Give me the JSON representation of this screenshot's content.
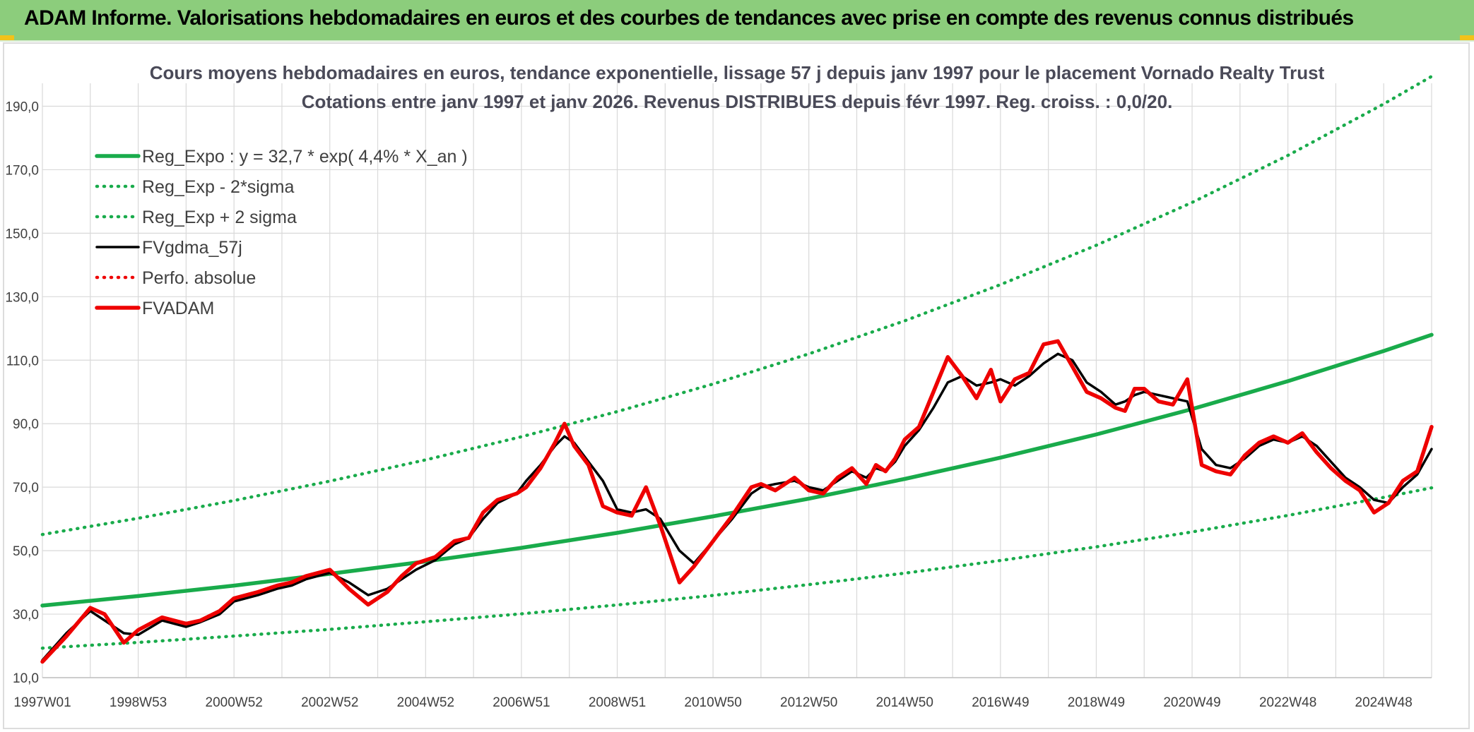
{
  "banner": {
    "title": "ADAM Informe. Valorisations hebdomadaires en euros et des courbes de tendances avec prise en compte des revenus connus distribués"
  },
  "colors": {
    "banner_bg": "#8ccd7c",
    "reg": "#19ab4b",
    "red": "#ee0000",
    "black": "#000000"
  },
  "chart_data": {
    "type": "line",
    "title": [
      "Cours moyens hebdomadaires en euros, tendance exponentielle, lissage 57 j depuis janv 1997 pour le placement Vornado Realty Trust",
      "Cotations entre janv 1997 et janv 2026. Revenus DISTRIBUES depuis févr 1997. Reg. croiss. : 0,0/20."
    ],
    "xlabel": "",
    "ylabel": "",
    "xlim": [
      1997.0,
      2026.0
    ],
    "ylim": [
      10,
      195
    ],
    "y_ticks": [
      10,
      30,
      50,
      70,
      90,
      110,
      130,
      150,
      170,
      190
    ],
    "y_tick_labels": [
      "10,0",
      "30,0",
      "50,0",
      "70,0",
      "90,0",
      "110,0",
      "130,0",
      "150,0",
      "170,0",
      "190,0"
    ],
    "x_ticks": [
      1997.0,
      1999.0,
      2001.0,
      2003.0,
      2005.0,
      2007.0,
      2009.0,
      2011.0,
      2013.0,
      2015.0,
      2017.0,
      2019.0,
      2021.0,
      2023.0,
      2025.0
    ],
    "x_tick_labels": [
      "1997W01",
      "1998W53",
      "2000W52",
      "2002W52",
      "2004W52",
      "2006W51",
      "2008W51",
      "2010W50",
      "2012W50",
      "2014W50",
      "2016W49",
      "2018W49",
      "2020W49",
      "2022W48",
      "2024W48"
    ],
    "minor_x_ticks": [
      1998.0,
      2000.0,
      2002.0,
      2004.0,
      2006.0,
      2008.0,
      2010.0,
      2012.0,
      2014.0,
      2016.0,
      2018.0,
      2020.0,
      2022.0,
      2024.0,
      2026.0
    ],
    "grid": true,
    "legend_position": "top-left",
    "series": [
      {
        "name": "Reg_Expo : y = 32,7 * exp( 4,4% *  X_an )",
        "style": "solid-thick",
        "color": "#19ab4b",
        "x": [
          1997,
          1999,
          2001,
          2003,
          2005,
          2007,
          2009,
          2011,
          2013,
          2015,
          2017,
          2019,
          2021,
          2023,
          2025,
          2026
        ],
        "y": [
          32.7,
          35.7,
          39.0,
          42.7,
          46.6,
          50.9,
          55.6,
          60.8,
          66.4,
          72.6,
          79.3,
          86.6,
          94.6,
          103.4,
          112.9,
          118.0
        ]
      },
      {
        "name": "Reg_Exp - 2*sigma",
        "style": "dotted",
        "color": "#19ab4b",
        "x": [
          1997,
          1999,
          2001,
          2003,
          2005,
          2007,
          2009,
          2011,
          2013,
          2015,
          2017,
          2019,
          2021,
          2023,
          2025,
          2026
        ],
        "y": [
          19.3,
          21.1,
          23.1,
          25.2,
          27.6,
          30.1,
          32.9,
          35.9,
          39.3,
          42.9,
          46.9,
          51.2,
          55.9,
          61.1,
          66.8,
          69.8
        ]
      },
      {
        "name": "Reg_Exp + 2 sigma",
        "style": "dotted",
        "color": "#19ab4b",
        "x": [
          1997,
          1999,
          2001,
          2003,
          2005,
          2007,
          2009,
          2011,
          2013,
          2015,
          2017,
          2019,
          2021,
          2023,
          2025,
          2026
        ],
        "y": [
          55.1,
          60.2,
          65.8,
          71.9,
          78.6,
          85.9,
          93.8,
          102.5,
          112.0,
          122.4,
          133.8,
          146.2,
          159.7,
          174.5,
          190.7,
          199.4
        ]
      },
      {
        "name": "FVgdma_57j",
        "style": "solid",
        "color": "#000000",
        "x": [
          1997.0,
          1997.5,
          1998.0,
          1998.3,
          1998.7,
          1999.0,
          1999.5,
          2000.0,
          2000.3,
          2000.7,
          2001.0,
          2001.5,
          2001.9,
          2002.2,
          2002.5,
          2003.0,
          2003.4,
          2003.8,
          2004.2,
          2004.5,
          2004.8,
          2005.2,
          2005.6,
          2005.9,
          2006.2,
          2006.5,
          2006.9,
          2007.1,
          2007.4,
          2007.7,
          2007.9,
          2008.1,
          2008.4,
          2008.7,
          2009.0,
          2009.3,
          2009.6,
          2009.9,
          2010.3,
          2010.6,
          2011.0,
          2011.4,
          2011.8,
          2012.0,
          2012.3,
          2012.7,
          2013.0,
          2013.3,
          2013.6,
          2013.9,
          2014.2,
          2014.4,
          2014.6,
          2014.8,
          2015.0,
          2015.3,
          2015.6,
          2015.9,
          2016.2,
          2016.5,
          2016.8,
          2017.0,
          2017.3,
          2017.6,
          2017.9,
          2018.2,
          2018.5,
          2018.8,
          2019.1,
          2019.4,
          2019.6,
          2019.8,
          2020.0,
          2020.3,
          2020.6,
          2020.9,
          2021.2,
          2021.5,
          2021.8,
          2022.1,
          2022.4,
          2022.7,
          2023.0,
          2023.3,
          2023.6,
          2023.9,
          2024.2,
          2024.5,
          2024.8,
          2025.1,
          2025.4,
          2025.7,
          2026.0
        ],
        "y": [
          15.5,
          24,
          31,
          28,
          24,
          23.5,
          28,
          26,
          27.5,
          30,
          34,
          36,
          38,
          39,
          41,
          43,
          40,
          36,
          38,
          41,
          44,
          47,
          52,
          54,
          60,
          65,
          68,
          72,
          77,
          83,
          86,
          84,
          78,
          72,
          63,
          62,
          63,
          60,
          50,
          46,
          53,
          60,
          68,
          70,
          71,
          72,
          70,
          69,
          72,
          75,
          73,
          76,
          75,
          78,
          83,
          88,
          95,
          103,
          105,
          102,
          103,
          104,
          102,
          105,
          109,
          112,
          110,
          103,
          100,
          96,
          97,
          99,
          100,
          99,
          98,
          97,
          82,
          77,
          76,
          79,
          83,
          85,
          84,
          86,
          83,
          78,
          73,
          70,
          66,
          65,
          70,
          74,
          82
        ]
      },
      {
        "name": "Perfo. absolue",
        "style": "dotted",
        "color": "#ee0000",
        "x": [],
        "y": []
      },
      {
        "name": "FVADAM",
        "style": "solid-thick",
        "color": "#ee0000",
        "x": [
          1997.0,
          1997.5,
          1998.0,
          1998.3,
          1998.7,
          1999.0,
          1999.5,
          2000.0,
          2000.3,
          2000.7,
          2001.0,
          2001.5,
          2001.9,
          2002.2,
          2002.5,
          2003.0,
          2003.4,
          2003.8,
          2004.2,
          2004.5,
          2004.8,
          2005.2,
          2005.6,
          2005.9,
          2006.2,
          2006.5,
          2006.9,
          2007.1,
          2007.4,
          2007.7,
          2007.9,
          2008.1,
          2008.4,
          2008.7,
          2009.0,
          2009.3,
          2009.6,
          2009.9,
          2010.3,
          2010.6,
          2011.0,
          2011.4,
          2011.8,
          2012.0,
          2012.3,
          2012.7,
          2013.0,
          2013.3,
          2013.6,
          2013.9,
          2014.2,
          2014.4,
          2014.6,
          2014.8,
          2015.0,
          2015.3,
          2015.6,
          2015.9,
          2016.2,
          2016.5,
          2016.8,
          2017.0,
          2017.3,
          2017.6,
          2017.9,
          2018.2,
          2018.5,
          2018.8,
          2019.1,
          2019.4,
          2019.6,
          2019.8,
          2020.0,
          2020.3,
          2020.6,
          2020.9,
          2021.2,
          2021.5,
          2021.8,
          2022.1,
          2022.4,
          2022.7,
          2023.0,
          2023.3,
          2023.6,
          2023.9,
          2024.2,
          2024.5,
          2024.8,
          2025.1,
          2025.4,
          2025.7,
          2026.0
        ],
        "y": [
          15,
          23,
          32,
          30,
          21,
          25,
          29,
          27,
          28,
          31,
          35,
          37,
          39,
          40,
          42,
          44,
          38,
          33,
          37,
          42,
          46,
          48,
          53,
          54,
          62,
          66,
          68,
          70,
          76,
          84,
          90,
          83,
          77,
          64,
          62,
          61,
          70,
          58,
          40,
          45,
          53,
          61,
          70,
          71,
          69,
          73,
          69,
          68,
          73,
          76,
          71,
          77,
          75,
          79,
          85,
          89,
          100,
          111,
          105,
          98,
          107,
          97,
          104,
          106,
          115,
          116,
          108,
          100,
          98,
          95,
          94,
          101,
          101,
          97,
          96,
          104,
          77,
          75,
          74,
          80,
          84,
          86,
          84,
          87,
          81,
          76,
          72,
          69,
          62,
          65,
          72,
          75,
          89
        ]
      }
    ]
  }
}
